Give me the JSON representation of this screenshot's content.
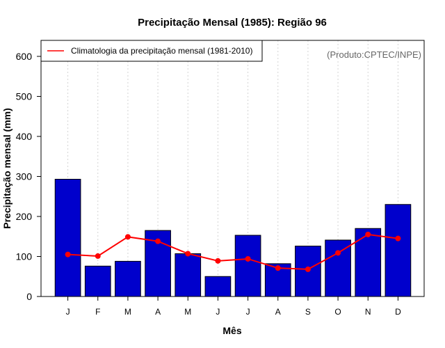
{
  "chart_data": {
    "type": "bar",
    "title": "Precipitação Mensal (1985): Região 96",
    "xlabel": "Mês",
    "ylabel": "Precipitação mensal (mm)",
    "ylim": [
      0,
      640
    ],
    "yticks": [
      0,
      100,
      200,
      300,
      400,
      500,
      600
    ],
    "categories": [
      "J",
      "F",
      "M",
      "A",
      "M",
      "J",
      "J",
      "A",
      "S",
      "O",
      "N",
      "D"
    ],
    "series": [
      {
        "name": "Precipitação mensal (1985)",
        "type": "bar",
        "color": "#0000cc",
        "values": [
          293,
          76,
          88,
          165,
          107,
          50,
          153,
          82,
          126,
          141,
          170,
          230
        ]
      },
      {
        "name": "Climatologia da precipitação mensal (1981-2010)",
        "type": "line",
        "color": "#ff0000",
        "values": [
          105,
          101,
          149,
          138,
          107,
          89,
          94,
          71,
          68,
          109,
          155,
          145
        ]
      }
    ],
    "legend": {
      "placement": "top-left",
      "entries": [
        "Climatologia da precipitação mensal (1981-2010)"
      ]
    },
    "annotation": "(Produto:CPTEC/INPE)",
    "grid": "vertical-dotted"
  }
}
